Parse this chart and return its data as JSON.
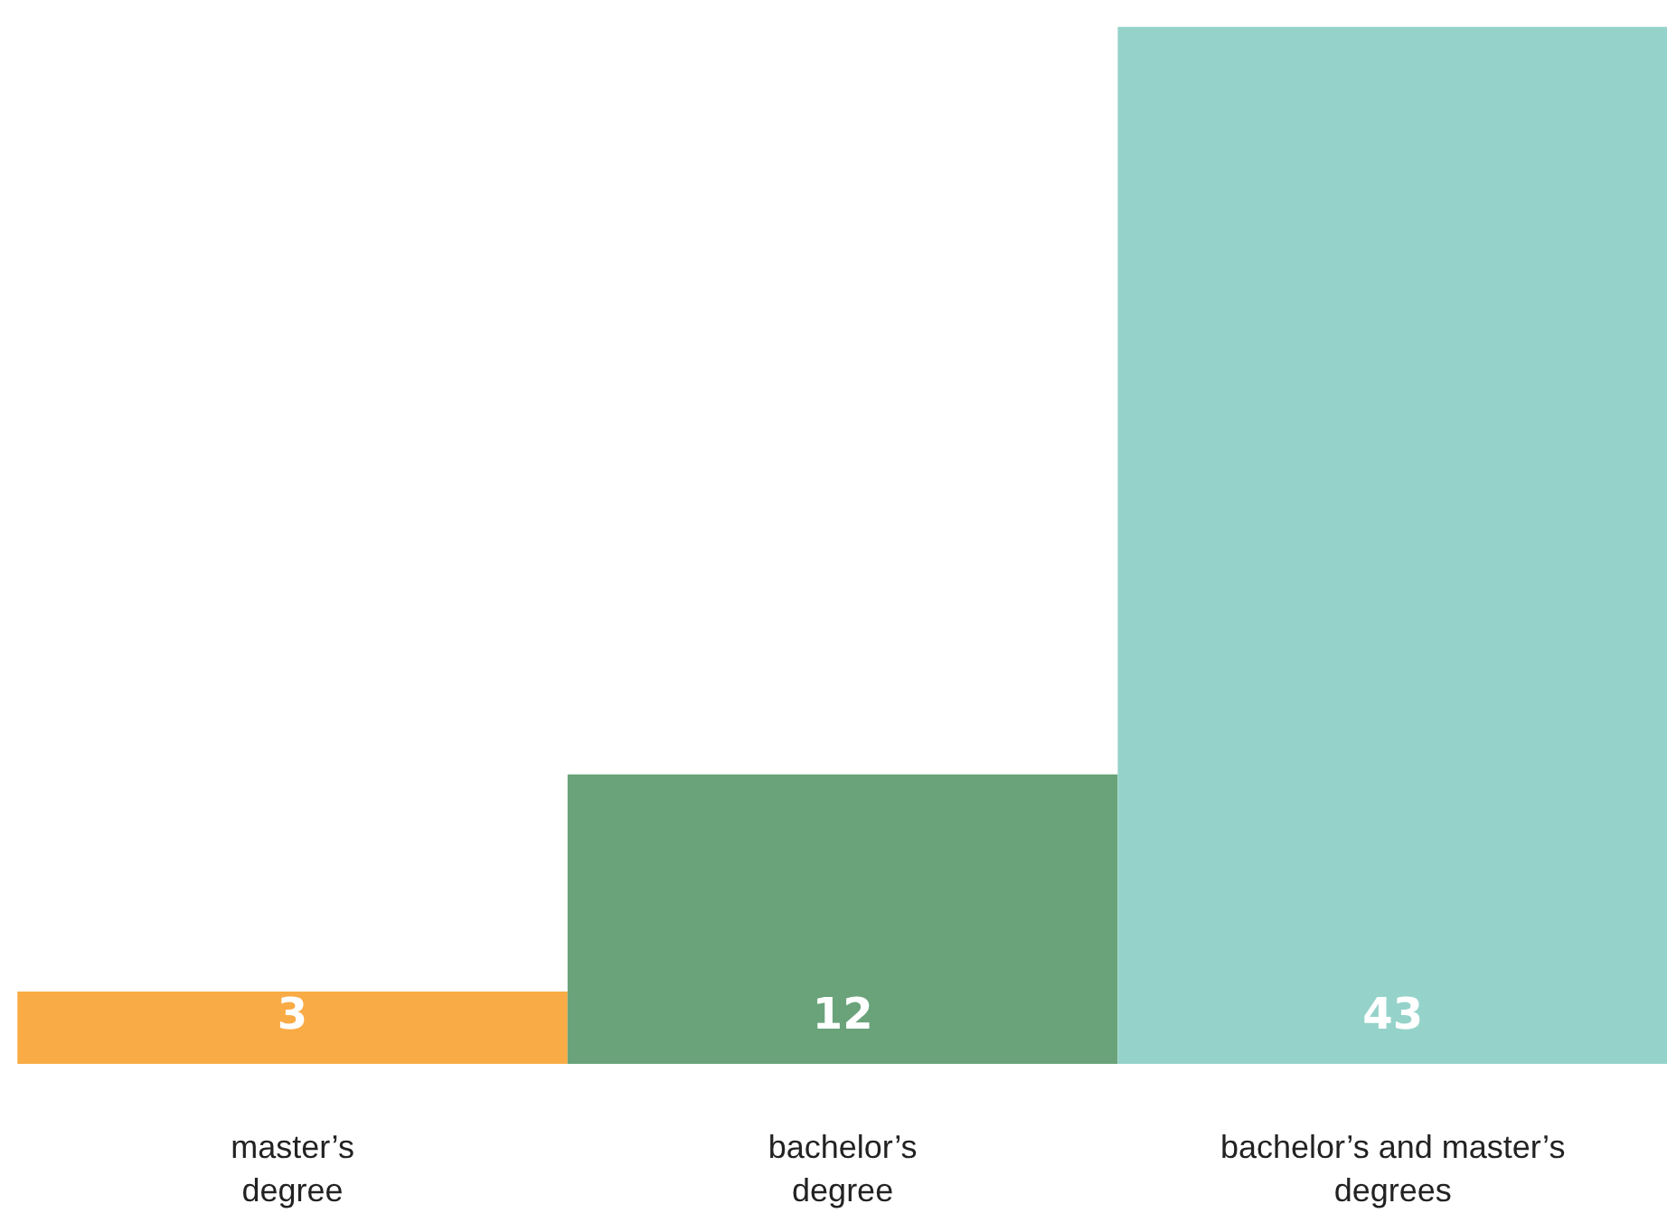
{
  "chart_data": {
    "type": "bar",
    "categories": [
      "master’s\ndegree",
      "bachelor’s\ndegree",
      "bachelor’s and master’s\ndegrees"
    ],
    "values": [
      3,
      12,
      43
    ],
    "colors": [
      "#f9ab45",
      "#6aa37a",
      "#95d3ca"
    ],
    "data_labels": true
  }
}
